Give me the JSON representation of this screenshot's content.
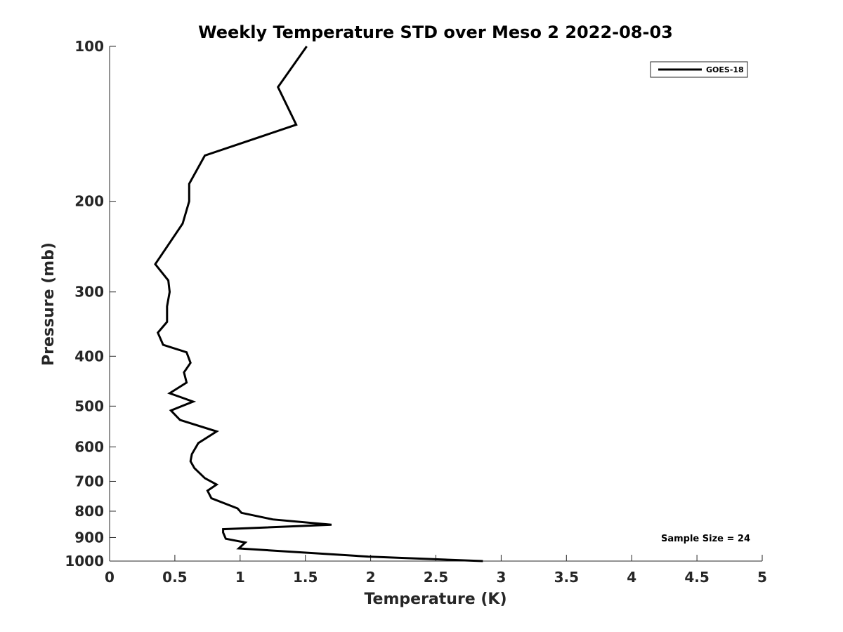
{
  "chart_data": {
    "type": "line",
    "title": "Weekly Temperature STD over Meso 2 2022-08-03",
    "xlabel": "Temperature (K)",
    "ylabel": "Pressure (mb)",
    "xlim": [
      0,
      5
    ],
    "ylim": [
      100,
      1000
    ],
    "y_scale": "log",
    "y_reversed": true,
    "grid": false,
    "x_ticks": [
      0,
      0.5,
      1,
      1.5,
      2,
      2.5,
      3,
      3.5,
      4,
      4.5,
      5
    ],
    "x_tick_labels": [
      "0",
      "0.5",
      "1",
      "1.5",
      "2",
      "2.5",
      "3",
      "3.5",
      "4",
      "4.5",
      "5"
    ],
    "y_ticks": [
      100,
      200,
      300,
      400,
      500,
      600,
      700,
      800,
      900,
      1000
    ],
    "y_tick_labels": [
      "100",
      "200",
      "300",
      "400",
      "500",
      "600",
      "700",
      "800",
      "900",
      "1000"
    ],
    "legend": {
      "position": "top-right",
      "entries": [
        "GOES-18"
      ]
    },
    "annotation": "Sample Size = 24",
    "series": [
      {
        "name": "GOES-18",
        "color": "#000000",
        "x": [
          1.51,
          1.29,
          1.43,
          0.73,
          0.61,
          0.61,
          0.56,
          0.44,
          0.35,
          0.45,
          0.46,
          0.44,
          0.44,
          0.37,
          0.41,
          0.59,
          0.62,
          0.57,
          0.59,
          0.46,
          0.64,
          0.47,
          0.54,
          0.82,
          0.68,
          0.63,
          0.62,
          0.65,
          0.73,
          0.82,
          0.75,
          0.78,
          0.98,
          1.01,
          1.25,
          1.7,
          0.87,
          0.87,
          0.89,
          1.04,
          0.99,
          1.98,
          2.86
        ],
        "y": [
          100,
          120,
          142,
          163,
          185,
          200,
          221,
          245,
          265,
          285,
          300,
          320,
          343,
          360,
          380,
          393,
          412,
          430,
          450,
          472,
          490,
          510,
          532,
          560,
          590,
          620,
          640,
          660,
          690,
          710,
          730,
          755,
          790,
          806,
          830,
          850,
          867,
          880,
          905,
          920,
          945,
          980,
          1000
        ]
      }
    ]
  }
}
